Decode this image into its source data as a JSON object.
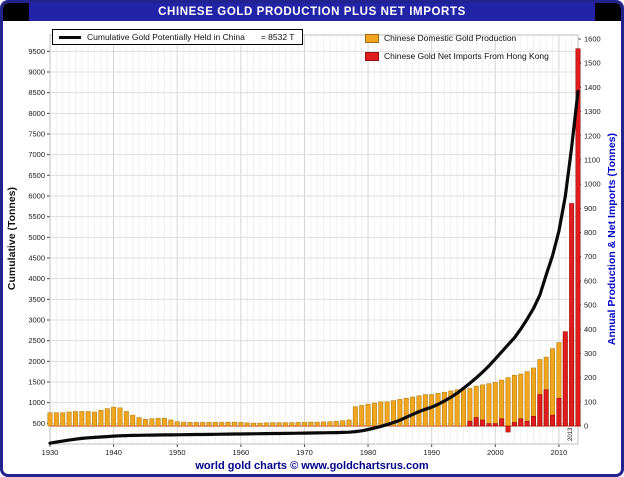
{
  "titlebar": {
    "title": "CHINESE GOLD PRODUCTION PLUS NET IMPORTS"
  },
  "footer": {
    "credit": "world gold charts © www.goldchartsrus.com"
  },
  "legend": {
    "cumulative_label": "Cumulative Gold Potentially Held in China",
    "cumulative_value": "= 8532 T",
    "production_label": "Chinese Domestic Gold Production",
    "imports_label": "Chinese Gold Net Imports From Hong Kong"
  },
  "axes": {
    "left_title": "Cumulative (Tonnes)",
    "right_title": "Annual Production & Net Imports (Tonnes)"
  },
  "annotations": {
    "last_year": "2013"
  },
  "colors": {
    "line": "#0a0a0a",
    "production": "#f2a61f",
    "production_border": "#a87400",
    "imports": "#e11c1c",
    "imports_border": "#8f0000",
    "zero_line": "#d02020",
    "grid": "#dedede",
    "grid_minor": "#f1f1f1",
    "grid_major_v": "#d5d5d5",
    "titlebar_bg": "#2323a8",
    "navy": "#00008b",
    "right_axis_title": "#0000cc",
    "tick_text": "#1a1a1a"
  },
  "chart_data": {
    "type": "bar",
    "subtype": "combo-bar-line",
    "title": "CHINESE GOLD PRODUCTION PLUS NET IMPORTS",
    "x_axis": {
      "min": 1930,
      "max": 2013,
      "label_step": 10,
      "tick_labels": [
        1930,
        1940,
        1950,
        1960,
        1970,
        1980,
        1990,
        2000,
        2010
      ]
    },
    "left_axis": {
      "label": "Cumulative (Tonnes)",
      "min": 0,
      "max": 9750,
      "tick_step": 500,
      "tick_min": 500,
      "tick_max": 9500
    },
    "right_axis": {
      "label": "Annual Production & Net Imports (Tonnes)",
      "min": 0,
      "max": 1600,
      "tick_step": 100
    },
    "grid": true,
    "legend_position": "top",
    "series": [
      {
        "name": "Cumulative Gold Potentially Held in China",
        "type": "line",
        "axis": "left",
        "color": "#0a0a0a",
        "end_value_label": "= 8532 T",
        "values": [
          20,
          45,
          70,
          95,
          115,
          135,
          150,
          160,
          170,
          180,
          190,
          198,
          204,
          208,
          211,
          213,
          215,
          217,
          219,
          221,
          223,
          225,
          227,
          229,
          231,
          233,
          235,
          237,
          239,
          241,
          243,
          245,
          247,
          249,
          251,
          253,
          255,
          257,
          259,
          261,
          263,
          265,
          268,
          271,
          274,
          277,
          280,
          285,
          300,
          320,
          350,
          385,
          425,
          470,
          520,
          575,
          645,
          715,
          785,
          840,
          890,
          960,
          1040,
          1130,
          1230,
          1350,
          1470,
          1600,
          1740,
          1890,
          2060,
          2230,
          2400,
          2570,
          2780,
          3020,
          3280,
          3600,
          4090,
          4560,
          5150,
          5990,
          7170,
          8532
        ]
      },
      {
        "name": "Chinese Domestic Gold Production",
        "type": "bar",
        "axis": "right",
        "color": "#f2a61f",
        "values": [
          55,
          55,
          55,
          58,
          60,
          60,
          60,
          58,
          65,
          72,
          78,
          75,
          60,
          45,
          35,
          28,
          30,
          32,
          32,
          25,
          18,
          16,
          15,
          15,
          15,
          15,
          15,
          15,
          16,
          16,
          15,
          13,
          12,
          12,
          13,
          14,
          14,
          14,
          14,
          15,
          15,
          16,
          16,
          17,
          18,
          20,
          22,
          25,
          80,
          85,
          90,
          95,
          100,
          100,
          105,
          110,
          115,
          120,
          125,
          130,
          130,
          135,
          140,
          145,
          150,
          150,
          155,
          165,
          170,
          175,
          180,
          190,
          200,
          210,
          215,
          225,
          240,
          275,
          285,
          320,
          345,
          370,
          405,
          430
        ]
      },
      {
        "name": "Chinese Gold Net Imports From Hong Kong",
        "type": "bar",
        "axis": "right",
        "color": "#e11c1c",
        "values": [
          0,
          0,
          0,
          0,
          0,
          0,
          0,
          0,
          0,
          0,
          0,
          0,
          0,
          0,
          0,
          0,
          0,
          0,
          0,
          0,
          0,
          0,
          0,
          0,
          0,
          0,
          0,
          0,
          0,
          0,
          0,
          0,
          0,
          0,
          0,
          0,
          0,
          0,
          0,
          0,
          0,
          0,
          0,
          0,
          0,
          0,
          0,
          0,
          0,
          0,
          0,
          0,
          0,
          0,
          0,
          0,
          0,
          0,
          0,
          0,
          0,
          0,
          0,
          0,
          0,
          0,
          20,
          35,
          25,
          10,
          10,
          30,
          -25,
          15,
          30,
          20,
          40,
          130,
          150,
          45,
          115,
          390,
          920,
          1560
        ]
      }
    ]
  }
}
